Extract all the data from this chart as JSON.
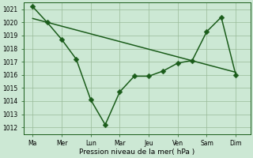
{
  "background_color": "#cce8d4",
  "grid_color": "#99bb99",
  "line_color": "#1a5c1a",
  "xlabel": "Pression niveau de la mer( hPa )",
  "ylim": [
    1011.5,
    1021.5
  ],
  "yticks": [
    1012,
    1013,
    1014,
    1015,
    1016,
    1017,
    1018,
    1019,
    1020,
    1021
  ],
  "xtick_labels": [
    "Ma",
    "Mer",
    "Lun",
    "Mar",
    "Jeu",
    "Ven",
    "Sam",
    "Dim"
  ],
  "xtick_positions": [
    0,
    1,
    2,
    3,
    4,
    5,
    6,
    7
  ],
  "line1_x": [
    0,
    0.5,
    1,
    1.5,
    2,
    2.5,
    3,
    3.5,
    4,
    4.5,
    5,
    5.5,
    6,
    6.5,
    7
  ],
  "line1_y": [
    1021.2,
    1020.0,
    1018.7,
    1017.2,
    1014.1,
    1012.2,
    1014.7,
    1015.9,
    1015.9,
    1016.3,
    1016.9,
    1017.1,
    1019.3,
    1020.4,
    1016.0
  ],
  "line2_x": [
    0,
    7
  ],
  "line2_y": [
    1020.3,
    1016.2
  ],
  "marker_size": 3.5,
  "linewidth": 1.1,
  "ylabel_fontsize": 5.5,
  "xlabel_fontsize": 6.5,
  "tick_fontsize": 5.5
}
